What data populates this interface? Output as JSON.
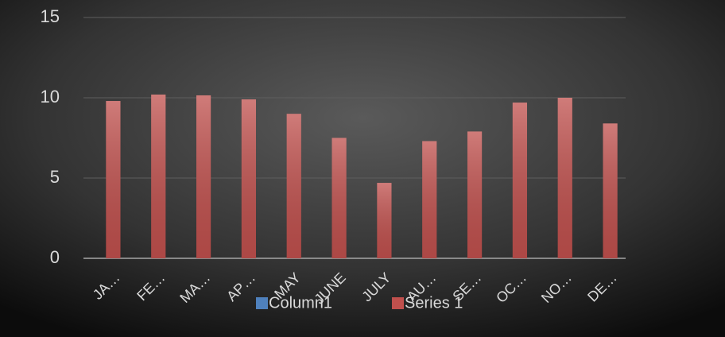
{
  "chart_data": {
    "type": "bar",
    "categories": [
      "JA…",
      "FE…",
      "MA…",
      "AP…",
      "MAY",
      "JUNE",
      "JULY",
      "AU…",
      "SE…",
      "OC…",
      "NO…",
      "DE…"
    ],
    "series": [
      {
        "name": "Column1",
        "color": "#4f81bd",
        "values": [
          null,
          null,
          null,
          null,
          null,
          null,
          null,
          null,
          null,
          null,
          null,
          null
        ]
      },
      {
        "name": "Series 1",
        "color": "#c0504d",
        "values": [
          9.8,
          10.2,
          10.15,
          9.9,
          9.0,
          7.5,
          4.7,
          7.3,
          7.9,
          9.7,
          10.0,
          8.4
        ]
      }
    ],
    "ylim": [
      0,
      15
    ],
    "yticks": [
      0,
      5,
      10,
      15
    ],
    "grid": true,
    "legend": "bottom"
  }
}
